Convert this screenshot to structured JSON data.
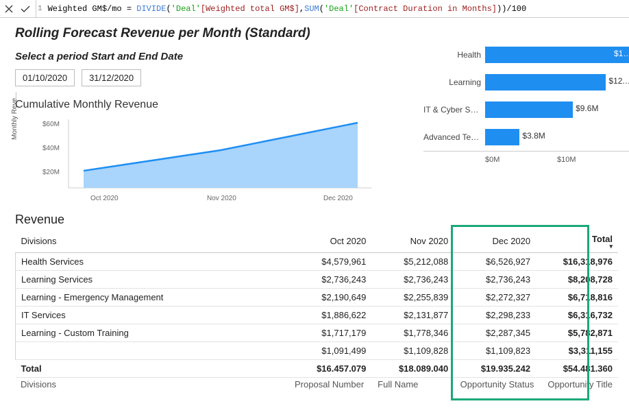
{
  "formula": {
    "line_no": "1",
    "measure": "Weighted GM$/mo",
    "eq": " = ",
    "fn1": "DIVIDE",
    "p_open": "(",
    "tb1": "'Deal'",
    "col1": "[Weighted total GM$]",
    "comma": ",",
    "fn2": "SUM",
    "p_open2": "(",
    "tb2": "'Deal'",
    "col2": "[Contract Duration in Months]",
    "p_close2": "))",
    "tail": "/100"
  },
  "title": "Rolling Forecast Revenue per Month (Standard)",
  "slicer": {
    "label": "Select a period Start and End Date",
    "start": "01/10/2020",
    "end": "31/12/2020"
  },
  "area_chart": {
    "title": "Cumulative Monthly Revenue",
    "y_axis_label": "Monthly Reve...",
    "type": "area",
    "line_color": "#1f8ef1",
    "fill_color": "#a9d4fb",
    "background": "#ffffff",
    "y_ticks": [
      "$60M",
      "$40M",
      "$20M"
    ],
    "x_ticks": [
      "Oct 2020",
      "Nov 2020",
      "Dec 2020"
    ],
    "ylim": [
      0,
      60
    ],
    "points": [
      [
        0,
        16
      ],
      [
        1,
        34
      ],
      [
        2,
        54
      ]
    ]
  },
  "bar_chart": {
    "type": "bar-horizontal",
    "color": "#1f8ef1",
    "max": 17,
    "categories": [
      "Health",
      "Learning",
      "IT & Cyber Ser...",
      "Advanced Tec..."
    ],
    "values": [
      17,
      12.5,
      9.6,
      3.8
    ],
    "value_labels": [
      "$1…",
      "$12.…",
      "$9.6M",
      "$3.8M"
    ],
    "x_ticks": [
      "$0M",
      "$10M"
    ]
  },
  "revenue_table": {
    "heading": "Revenue",
    "columns": [
      "Divisions",
      "Oct 2020",
      "Nov 2020",
      "Dec 2020",
      "Total"
    ],
    "rows": [
      [
        "Health Services",
        "$4,579,961",
        "$5,212,088",
        "$6,526,927",
        "$16,318,976"
      ],
      [
        "Learning Services",
        "$2,736,243",
        "$2,736,243",
        "$2,736,243",
        "$8,208,728"
      ],
      [
        "Learning - Emergency Management",
        "$2,190,649",
        "$2,255,839",
        "$2,272,327",
        "$6,718,816"
      ],
      [
        "IT Services",
        "$1,886,622",
        "$2,131,877",
        "$2,298,233",
        "$6,316,732"
      ],
      [
        "Learning - Custom Training",
        "$1,717,179",
        "$1,778,346",
        "$2,287,345",
        "$5,782,871"
      ],
      [
        "",
        "$1,091,499",
        "$1,109,828",
        "$1,109,823",
        "$3,311,155"
      ]
    ],
    "grand_total": [
      "Total",
      "$16.457.079",
      "$18.089.040",
      "$19.935.242",
      "$54.481.360"
    ]
  },
  "footer": {
    "c0": "Divisions",
    "c1": "Proposal Number",
    "c2": "Full Name",
    "c3": "Opportunity Status",
    "c4": "Opportunity Title"
  }
}
